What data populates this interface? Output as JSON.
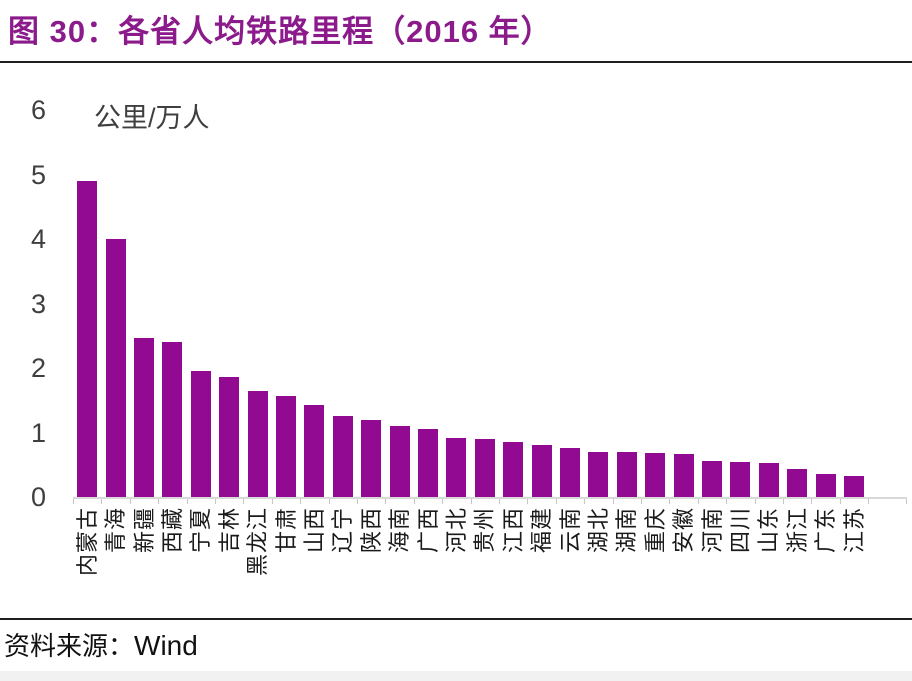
{
  "figure": {
    "title": "图 30：各省人均铁路里程（2016 年）"
  },
  "source": {
    "label": "资料来源：",
    "value": "Wind"
  },
  "colors": {
    "bar": "#920A92",
    "title": "#8B1A8B",
    "axis_line": "#d9d9d9",
    "tick_mark": "#c6c6c6",
    "axis_text": "#3f3f3f"
  },
  "chart_data": {
    "type": "bar",
    "title": "图 30：各省人均铁路里程（2016 年）",
    "unit_label": "公里/万人",
    "xlabel": "",
    "ylabel": "公里/万人",
    "ylim": [
      0,
      6
    ],
    "yticks": [
      0,
      1,
      2,
      3,
      4,
      5,
      6
    ],
    "grid": false,
    "legend_position": "none",
    "categories": [
      "内蒙古",
      "青海",
      "新疆",
      "西藏",
      "宁夏",
      "吉林",
      "黑龙江",
      "甘肃",
      "山西",
      "辽宁",
      "陕西",
      "海南",
      "广西",
      "河北",
      "贵州",
      "江西",
      "福建",
      "云南",
      "湖北",
      "湖南",
      "重庆",
      "安徽",
      "河南",
      "四川",
      "山东",
      "浙江",
      "广东",
      "江苏"
    ],
    "values": [
      4.9,
      4.0,
      2.47,
      2.4,
      1.96,
      1.86,
      1.64,
      1.57,
      1.43,
      1.26,
      1.19,
      1.1,
      1.05,
      0.92,
      0.9,
      0.85,
      0.81,
      0.76,
      0.7,
      0.69,
      0.68,
      0.67,
      0.56,
      0.54,
      0.52,
      0.43,
      0.35,
      0.32
    ],
    "source": "Wind"
  }
}
